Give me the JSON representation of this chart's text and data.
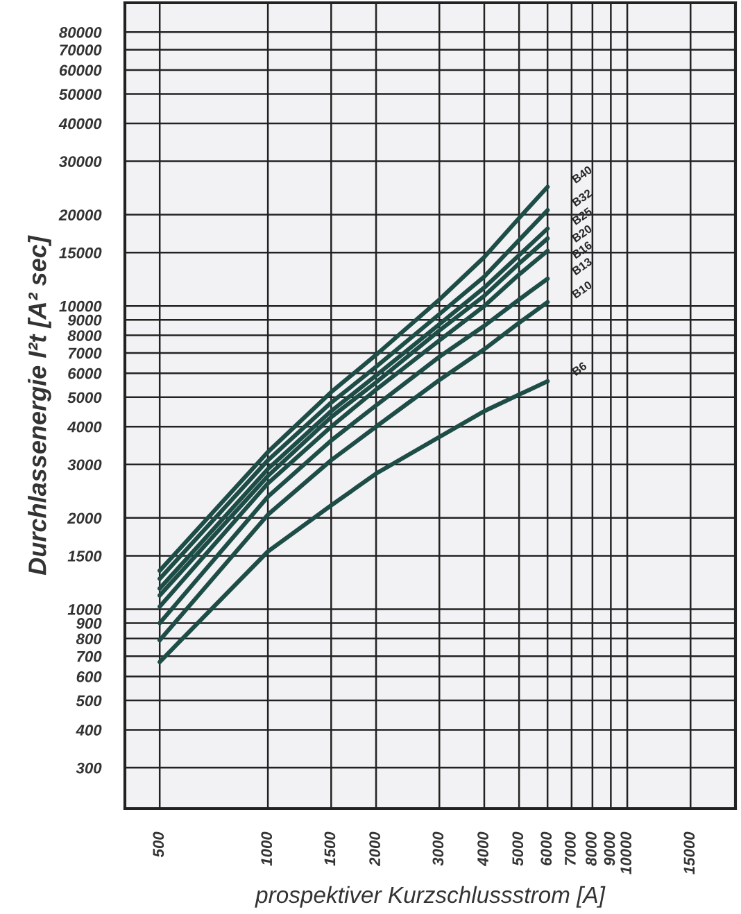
{
  "chart_data": {
    "type": "line",
    "xlabel": "prospektiver Kurzschlussstrom [A]",
    "ylabel": "Durchlassenergie I²t [A² sec]",
    "x": [
      500,
      1000,
      1500,
      2000,
      3000,
      4000,
      5000,
      6000
    ],
    "series": [
      {
        "name": "B40",
        "color": "#1e4d48",
        "values": [
          1340,
          3300,
          5200,
          6900,
          10500,
          14500,
          19500,
          24700
        ]
      },
      {
        "name": "B32",
        "color": "#1e4d48",
        "values": [
          1260,
          3100,
          4800,
          6300,
          9400,
          12500,
          16500,
          20700
        ]
      },
      {
        "name": "B25",
        "color": "#1e4d48",
        "values": [
          1170,
          2900,
          4500,
          5900,
          8700,
          11500,
          14700,
          18000
        ]
      },
      {
        "name": "B20",
        "color": "#1e4d48",
        "values": [
          1110,
          2750,
          4300,
          5600,
          8300,
          10800,
          13800,
          16700
        ]
      },
      {
        "name": "B16",
        "color": "#1e4d48",
        "values": [
          1020,
          2600,
          4000,
          5300,
          7700,
          10000,
          12700,
          15200
        ]
      },
      {
        "name": "B13",
        "color": "#1e4d48",
        "values": [
          900,
          2350,
          3600,
          4700,
          6800,
          8600,
          10500,
          12300
        ]
      },
      {
        "name": "B10",
        "color": "#1e4d48",
        "values": [
          790,
          2050,
          3100,
          4000,
          5700,
          7200,
          8800,
          10300
        ]
      },
      {
        "name": "B6",
        "color": "#1e4d48",
        "values": [
          670,
          1550,
          2200,
          2800,
          3700,
          4500,
          5100,
          5650
        ]
      }
    ],
    "log": "xy",
    "xlim": [
      400,
      20000
    ],
    "ylim": [
      220,
      100000
    ],
    "xticks": [
      500,
      1000,
      1500,
      2000,
      3000,
      4000,
      5000,
      6000,
      7000,
      8000,
      9000,
      10000,
      15000
    ],
    "yticks": [
      300,
      400,
      500,
      600,
      700,
      800,
      900,
      1000,
      1500,
      2000,
      3000,
      4000,
      5000,
      6000,
      7000,
      8000,
      9000,
      10000,
      15000,
      20000,
      30000,
      40000,
      50000,
      60000,
      70000,
      80000
    ],
    "grid": true,
    "legend": false,
    "marker": "none",
    "line_style": "solid"
  }
}
